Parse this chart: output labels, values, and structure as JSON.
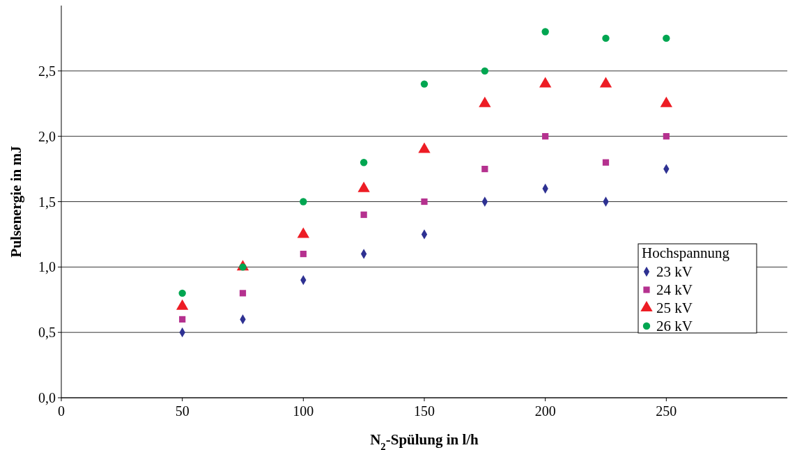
{
  "chart_data": {
    "type": "scatter",
    "xlabel": "N$_{2}$-Spülung in l/h",
    "ylabel": "Pulsenergie in mJ",
    "legend_title": "Hochspannung",
    "x": [
      50,
      75,
      100,
      125,
      150,
      175,
      200,
      225,
      250
    ],
    "xlim": [
      0,
      300
    ],
    "xticks": [
      0,
      50,
      100,
      150,
      200,
      250
    ],
    "ylim": [
      0,
      3
    ],
    "yticks": [
      {
        "value": 0,
        "label": "0,0"
      },
      {
        "value": 0.5,
        "label": "0,5"
      },
      {
        "value": 1,
        "label": "1,0"
      },
      {
        "value": 1.5,
        "label": "1,5"
      },
      {
        "value": 2,
        "label": "2,0"
      },
      {
        "value": 2.5,
        "label": "2,5"
      }
    ],
    "grid": "y",
    "legend": "right",
    "series": [
      {
        "name": "23 kV",
        "color": "#2e3192",
        "marker": "diamond",
        "values": [
          0.5,
          0.6,
          0.9,
          1.1,
          1.25,
          1.5,
          1.6,
          1.5,
          1.75
        ]
      },
      {
        "name": "24 kV",
        "color": "#b5318f",
        "marker": "square",
        "values": [
          0.6,
          0.8,
          1.1,
          1.4,
          1.5,
          1.75,
          2.0,
          1.8,
          2.0
        ]
      },
      {
        "name": "25 kV",
        "color": "#ed1c24",
        "marker": "triangle",
        "values": [
          0.7,
          1.0,
          1.25,
          1.6,
          1.9,
          2.25,
          2.4,
          2.4,
          2.25
        ]
      },
      {
        "name": "26 kV",
        "color": "#00a651",
        "marker": "circle",
        "values": [
          0.8,
          1.0,
          1.5,
          1.8,
          2.4,
          2.5,
          2.8,
          2.75,
          2.75
        ]
      }
    ]
  }
}
